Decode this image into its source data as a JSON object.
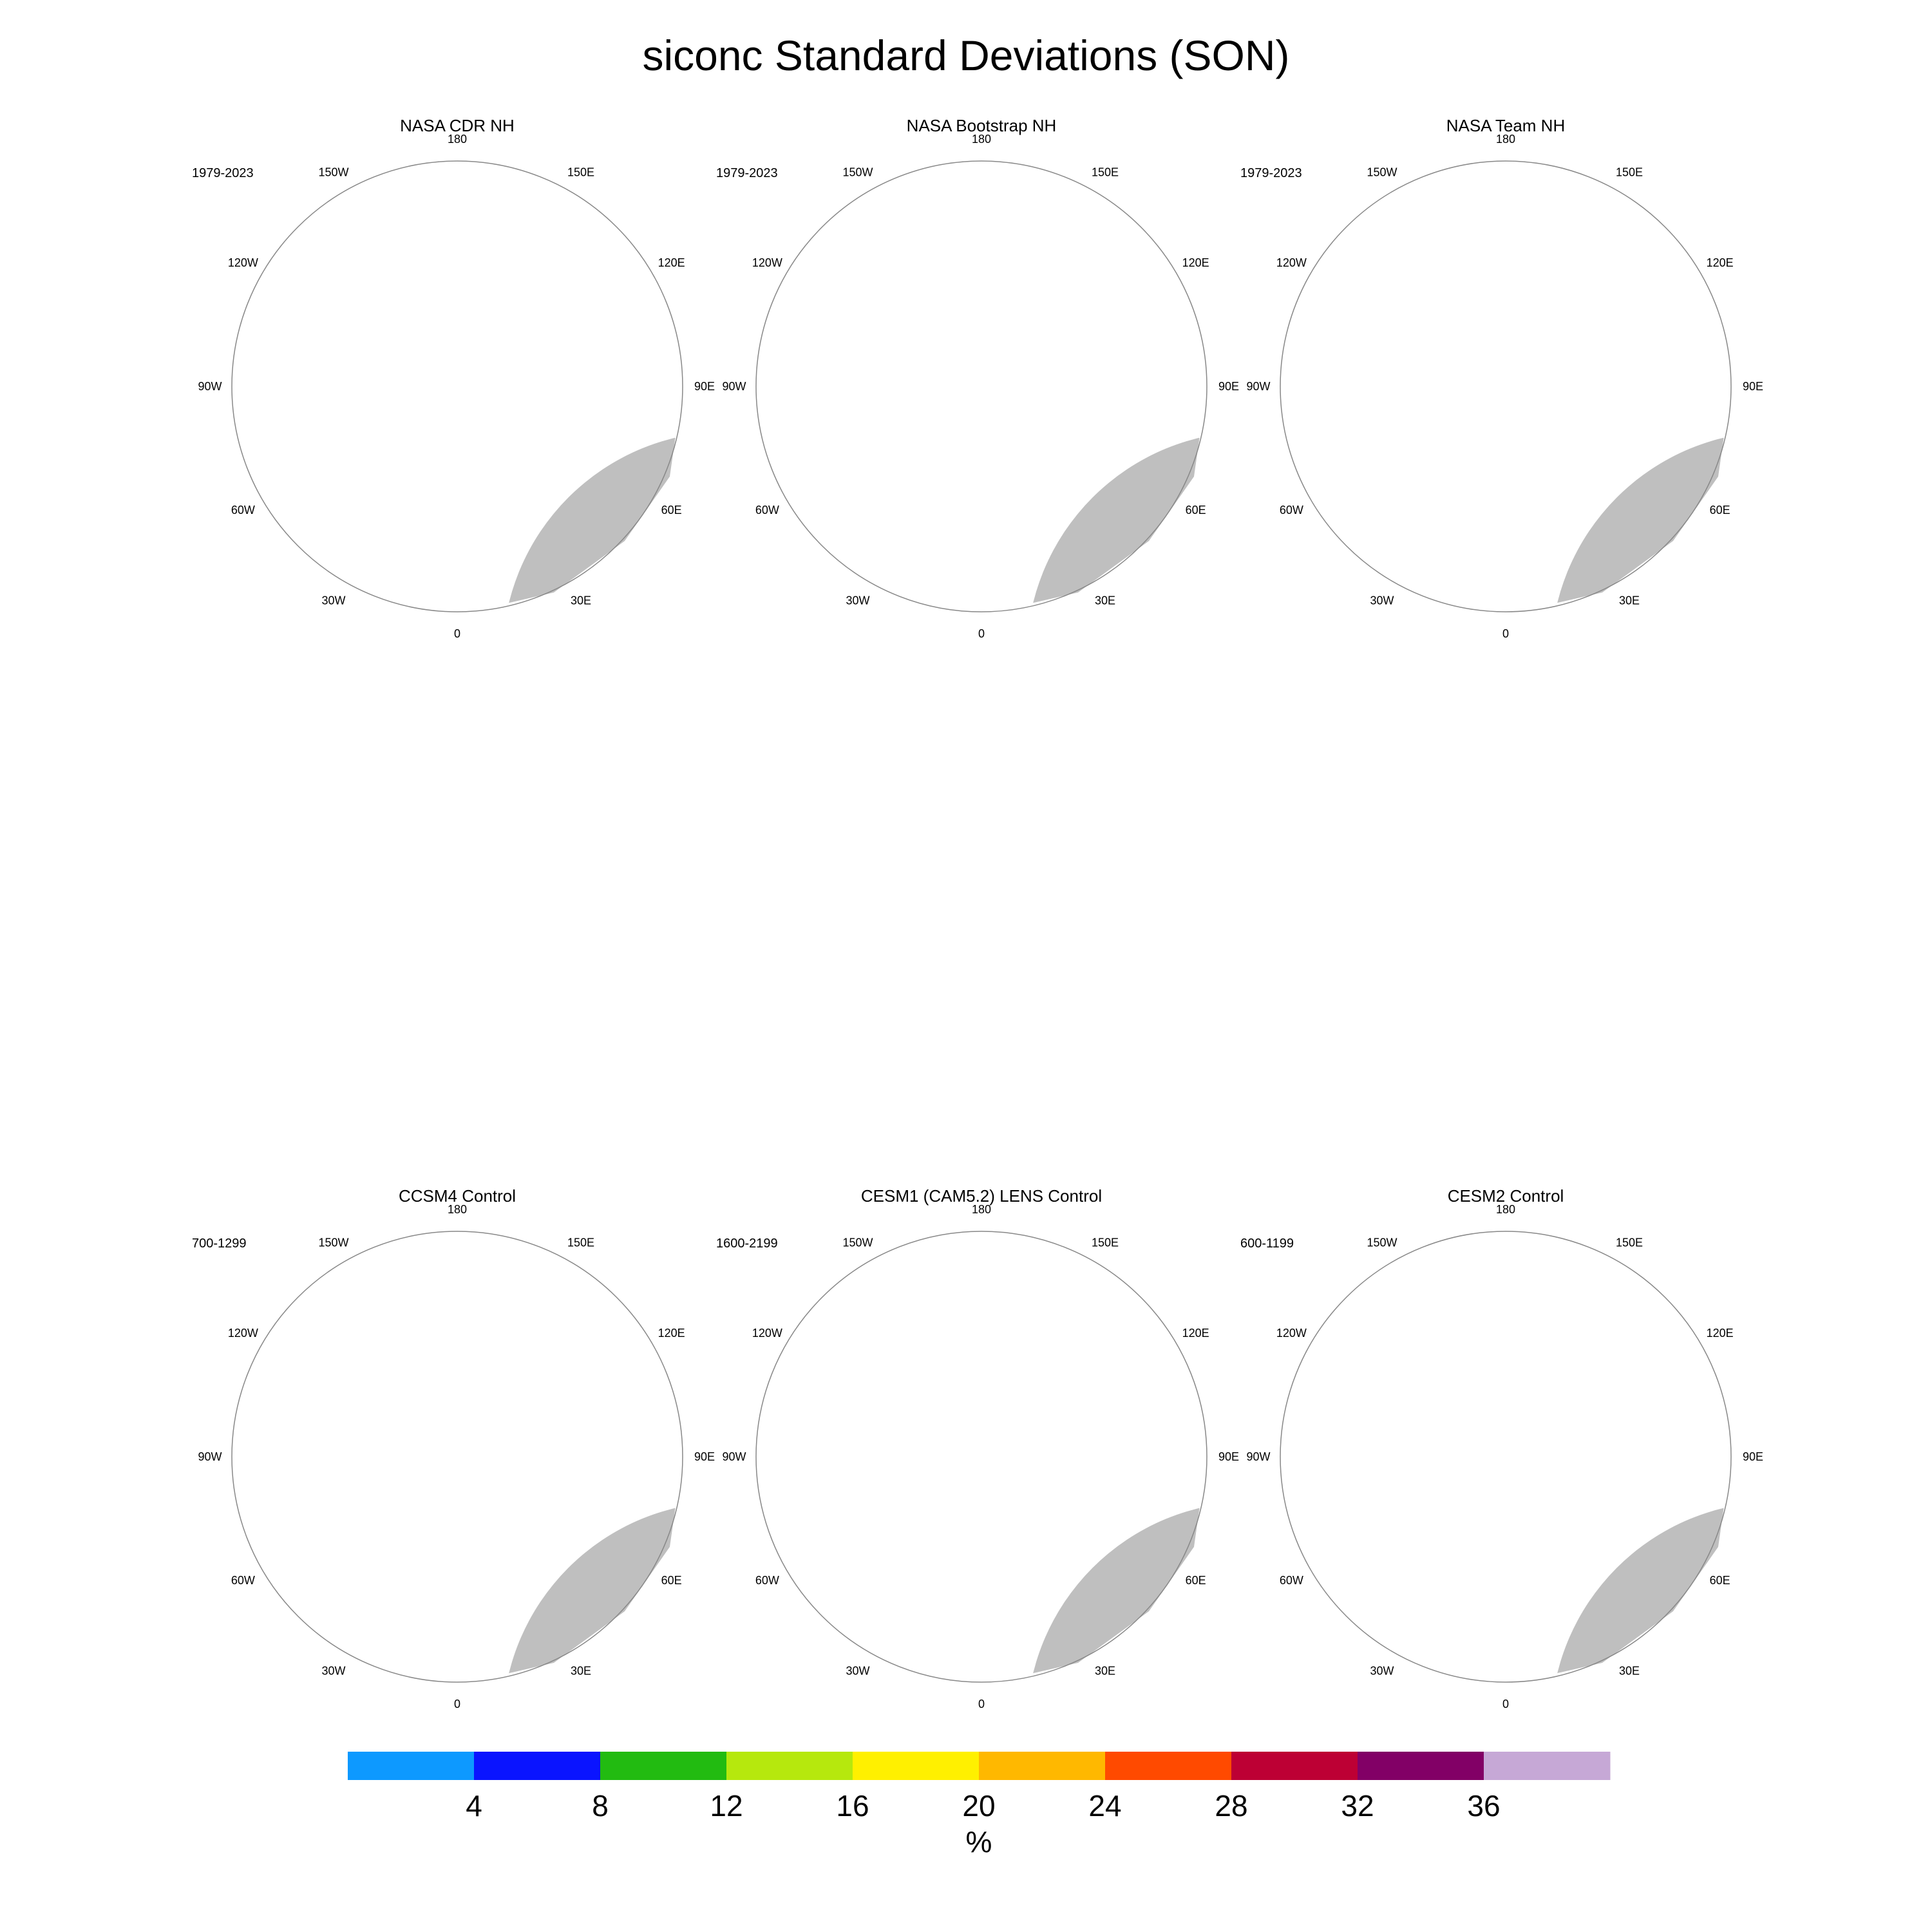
{
  "title": "siconc Standard Deviations (SON)",
  "colors": {
    "land": "#bfbfbf",
    "ocean": "#ffffff",
    "outline": "#888888",
    "levels": [
      "#0d99ff",
      "#0a14ff",
      "#22bb11",
      "#b6e80d",
      "#fff000",
      "#ffb800",
      "#ff4a00",
      "#bd0034",
      "#820066",
      "#c6a8d6"
    ]
  },
  "longitude_labels": [
    "180",
    "150E",
    "120E",
    "90E",
    "60E",
    "30E",
    "0",
    "30W",
    "60W",
    "90W",
    "120W",
    "150W"
  ],
  "panels": [
    {
      "title": "NASA CDR NH",
      "period": "1979-2023",
      "pattern": "obs_cdr"
    },
    {
      "title": "NASA Bootstrap NH",
      "period": "1979-2023",
      "pattern": "obs_bootstrap"
    },
    {
      "title": "NASA Team NH",
      "period": "1979-2023",
      "pattern": "obs_team"
    },
    {
      "title": "CCSM4 Control",
      "period": "700-1299",
      "pattern": "model_ccsm4"
    },
    {
      "title": "CESM1 (CAM5.2) LENS Control",
      "period": "1600-2199",
      "pattern": "model_cesm1"
    },
    {
      "title": "CESM2 Control",
      "period": "600-1199",
      "pattern": "model_cesm2"
    }
  ],
  "colorbar": {
    "ticks": [
      "4",
      "8",
      "12",
      "16",
      "20",
      "24",
      "28",
      "32",
      "36"
    ],
    "unit": "%"
  }
}
